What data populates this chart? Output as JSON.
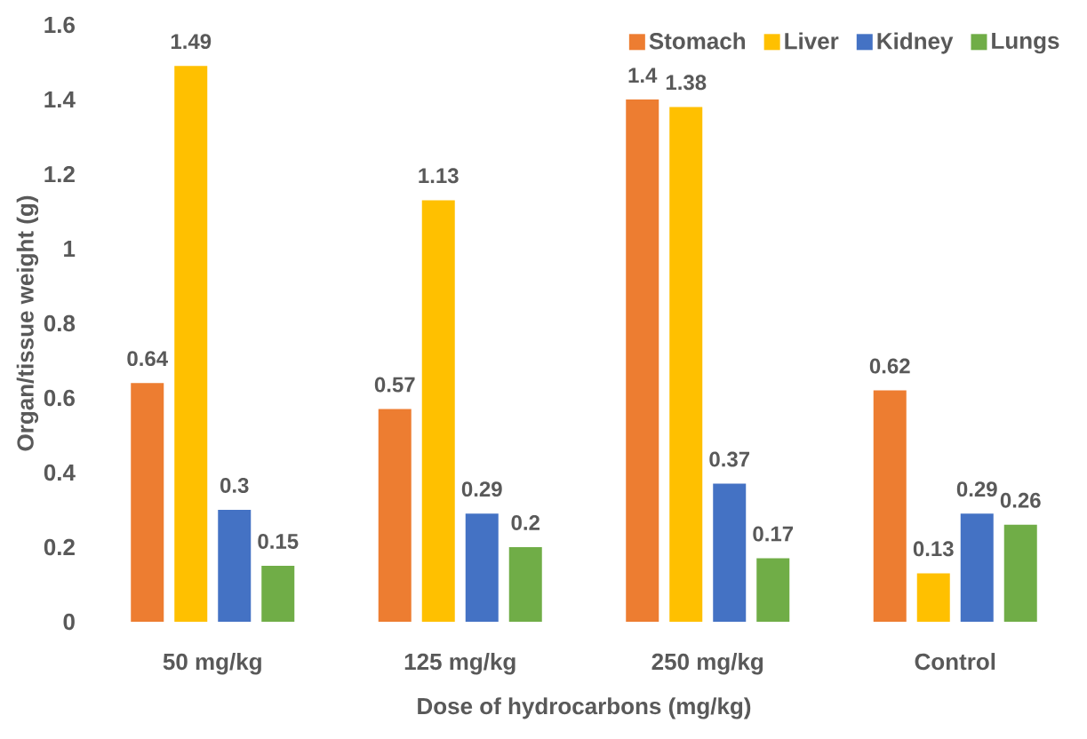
{
  "chart_data": {
    "type": "bar",
    "xlabel": "Dose of hydrocarbons (mg/kg)",
    "ylabel": "Organ/tissue weight (g)",
    "categories": [
      "50 mg/kg",
      "125 mg/kg",
      "250 mg/kg",
      "Control"
    ],
    "series": [
      {
        "name": "Stomach",
        "color": "#ed7d31",
        "values": [
          0.64,
          0.57,
          1.4,
          0.62
        ]
      },
      {
        "name": "Liver",
        "color": "#ffc000",
        "values": [
          1.49,
          1.13,
          1.38,
          0.13
        ]
      },
      {
        "name": "Kidney",
        "color": "#4472c4",
        "values": [
          0.3,
          0.29,
          0.37,
          0.29
        ]
      },
      {
        "name": "Lungs",
        "color": "#70ad47",
        "values": [
          0.15,
          0.2,
          0.17,
          0.26
        ]
      }
    ],
    "ylim": [
      0,
      1.6
    ],
    "yticks": [
      0,
      0.2,
      0.4,
      0.6,
      0.8,
      1,
      1.2,
      1.4,
      1.6
    ],
    "data_labels": true,
    "legend": "top right",
    "grid": false
  }
}
